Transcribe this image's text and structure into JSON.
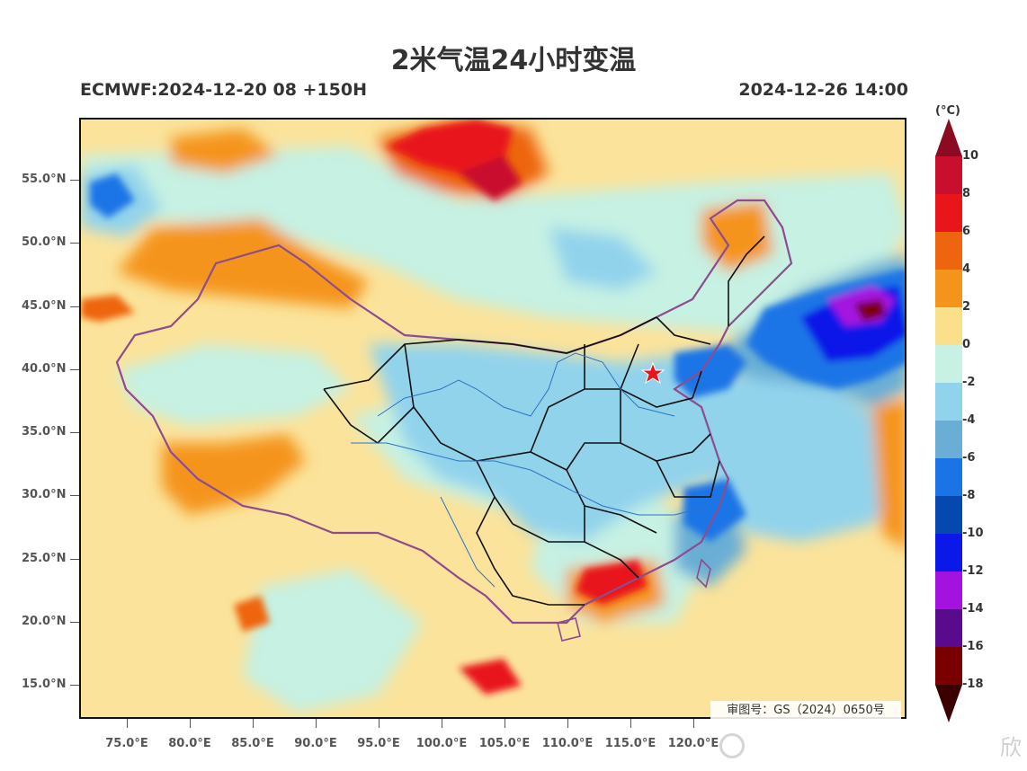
{
  "header": {
    "title": "2米气温24小时变温",
    "model_info": "ECMWF:2024-12-20 08 +150H",
    "valid_time": "2024-12-26 14:00"
  },
  "map": {
    "approval_number": "审图号：GS（2024）0650号",
    "latitude_labels": [
      "55.0°N",
      "50.0°N",
      "45.0°N",
      "40.0°N",
      "35.0°N",
      "30.0°N",
      "25.0°N",
      "20.0°N",
      "15.0°N"
    ],
    "longitude_labels": [
      "75.0°E",
      "80.0°E",
      "85.0°E",
      "90.0°E",
      "95.0°E",
      "100.0°E",
      "105.0°E",
      "110.0°E",
      "115.0°E",
      "120.0°E"
    ],
    "marker": "red-star"
  },
  "colorbar": {
    "unit": "(°C)",
    "labels": [
      "10",
      "8",
      "6",
      "4",
      "2",
      "0",
      "-2",
      "-4",
      "-6",
      "-8",
      "-10",
      "-12",
      "-14",
      "-16",
      "-18"
    ],
    "colors": [
      "#8b0b22",
      "#c8102e",
      "#e8161b",
      "#ee6510",
      "#f5941d",
      "#fbe08b",
      "#c6f1e3",
      "#92d3ec",
      "#6aaed6",
      "#1a74e6",
      "#0549b0",
      "#0a18e8",
      "#a412e0",
      "#5a0a8c",
      "#7a0000",
      "#3a0000"
    ]
  },
  "watermark": {
    "text": "欣"
  }
}
